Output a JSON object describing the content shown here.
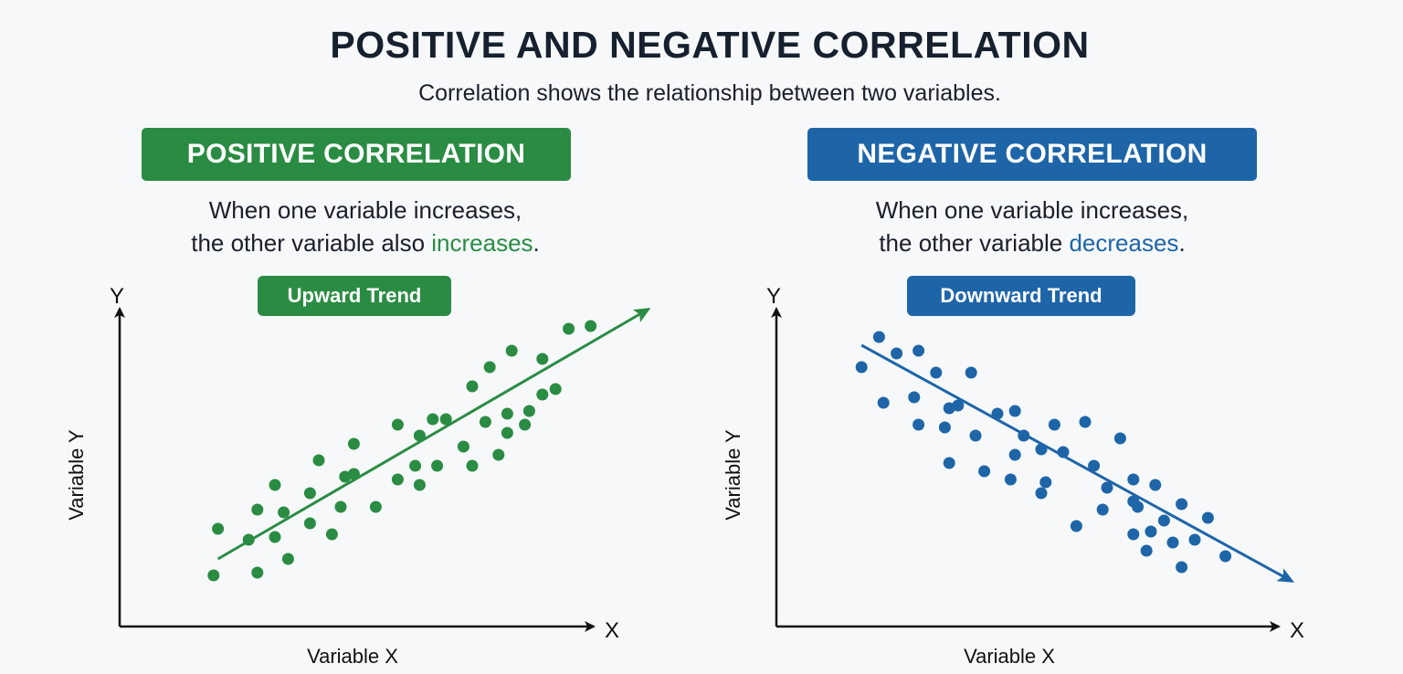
{
  "title": "POSITIVE AND NEGATIVE CORRELATION",
  "subtitle": "Correlation shows the relationship between two variables.",
  "colors": {
    "positive": "#2a8c43",
    "negative": "#1e65a8"
  },
  "panels": {
    "positive": {
      "heading": "POSITIVE CORRELATION",
      "desc_line1": "When one variable increases,",
      "desc_line2_prefix": "the other variable also ",
      "desc_highlight": "increases",
      "desc_suffix": ".",
      "trend_label": "Upward Trend"
    },
    "negative": {
      "heading": "NEGATIVE CORRELATION",
      "desc_line1": "When one variable increases,",
      "desc_line2_prefix": "the other variable ",
      "desc_highlight": "decreases",
      "desc_suffix": ".",
      "trend_label": "Downward Trend"
    }
  },
  "chart_data": [
    {
      "type": "scatter",
      "title": "POSITIVE CORRELATION",
      "xlabel": "Variable X",
      "ylabel": "Variable Y",
      "x_axis_letter": "X",
      "y_axis_letter": "Y",
      "xlim": [
        0,
        100
      ],
      "ylim": [
        0,
        100
      ],
      "trend": "upward",
      "trend_line": [
        [
          12,
          18
        ],
        [
          110,
          109
        ]
      ],
      "points": [
        [
          11,
          12
        ],
        [
          12,
          29
        ],
        [
          19,
          25
        ],
        [
          21,
          13
        ],
        [
          21,
          36
        ],
        [
          25,
          26
        ],
        [
          25,
          45
        ],
        [
          27,
          35
        ],
        [
          28,
          18
        ],
        [
          33,
          31
        ],
        [
          33,
          42
        ],
        [
          35,
          54
        ],
        [
          38,
          27
        ],
        [
          40,
          37
        ],
        [
          41,
          48
        ],
        [
          43,
          49
        ],
        [
          43,
          60
        ],
        [
          48,
          37
        ],
        [
          53,
          67
        ],
        [
          53,
          47
        ],
        [
          57,
          52
        ],
        [
          58,
          45
        ],
        [
          58,
          63
        ],
        [
          61,
          69
        ],
        [
          62,
          52
        ],
        [
          64,
          69
        ],
        [
          68,
          59
        ],
        [
          70,
          52
        ],
        [
          70,
          81
        ],
        [
          73,
          68
        ],
        [
          74,
          88
        ],
        [
          76,
          56
        ],
        [
          78,
          71
        ],
        [
          78,
          64
        ],
        [
          79,
          94
        ],
        [
          82,
          67
        ],
        [
          83,
          72
        ],
        [
          86,
          78
        ],
        [
          86,
          91
        ],
        [
          89,
          80
        ],
        [
          92,
          102
        ],
        [
          97,
          103
        ]
      ]
    },
    {
      "type": "scatter",
      "title": "NEGATIVE CORRELATION",
      "xlabel": "Variable X",
      "ylabel": "Variable Y",
      "x_axis_letter": "X",
      "y_axis_letter": "Y",
      "xlim": [
        0,
        100
      ],
      "ylim": [
        0,
        100
      ],
      "trend": "downward",
      "trend_line": [
        [
          9,
          96
        ],
        [
          107,
          10
        ]
      ],
      "points": [
        [
          9,
          88
        ],
        [
          13,
          99
        ],
        [
          14,
          75
        ],
        [
          17,
          93
        ],
        [
          21,
          77
        ],
        [
          22,
          94
        ],
        [
          22,
          67
        ],
        [
          26,
          86
        ],
        [
          28,
          66
        ],
        [
          29,
          53
        ],
        [
          29,
          73
        ],
        [
          31,
          74
        ],
        [
          34,
          86
        ],
        [
          35,
          63
        ],
        [
          37,
          50
        ],
        [
          40,
          71
        ],
        [
          43,
          47
        ],
        [
          44,
          56
        ],
        [
          44,
          72
        ],
        [
          46,
          63
        ],
        [
          50,
          58
        ],
        [
          50,
          42
        ],
        [
          51,
          46
        ],
        [
          53,
          67
        ],
        [
          55,
          57
        ],
        [
          58,
          30
        ],
        [
          60,
          68
        ],
        [
          62,
          52
        ],
        [
          64,
          36
        ],
        [
          65,
          44
        ],
        [
          68,
          62
        ],
        [
          71,
          27
        ],
        [
          71,
          39
        ],
        [
          71,
          47
        ],
        [
          72,
          37
        ],
        [
          74,
          21
        ],
        [
          75,
          28
        ],
        [
          76,
          45
        ],
        [
          78,
          32
        ],
        [
          80,
          24
        ],
        [
          82,
          38
        ],
        [
          82,
          15
        ],
        [
          85,
          25
        ],
        [
          88,
          33
        ],
        [
          92,
          19
        ]
      ]
    }
  ]
}
